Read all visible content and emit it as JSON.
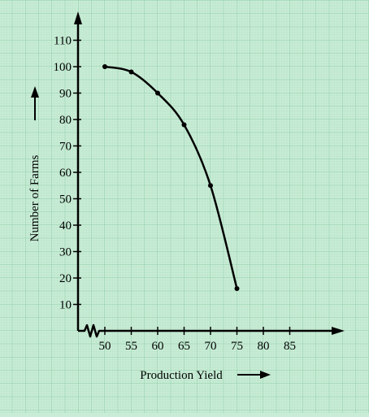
{
  "chart_data": {
    "type": "line",
    "xlabel": "Production Yield",
    "ylabel": "Number of Farms",
    "x_ticks": [
      50,
      55,
      60,
      65,
      70,
      75,
      80,
      85
    ],
    "y_ticks": [
      10,
      20,
      30,
      40,
      50,
      60,
      70,
      80,
      90,
      100,
      110
    ],
    "xlim": [
      45,
      85
    ],
    "ylim": [
      0,
      110
    ],
    "x_axis_break": true,
    "grid": true,
    "series": [
      {
        "x": [
          50,
          55,
          60,
          65,
          70,
          75
        ],
        "values": [
          100,
          98,
          90,
          78,
          55,
          16
        ]
      }
    ],
    "colors": {
      "background": "#c9ecd6",
      "grid_fine": "#a6dcbb",
      "grid_major": "#7fc59b",
      "line": "#000000"
    }
  }
}
